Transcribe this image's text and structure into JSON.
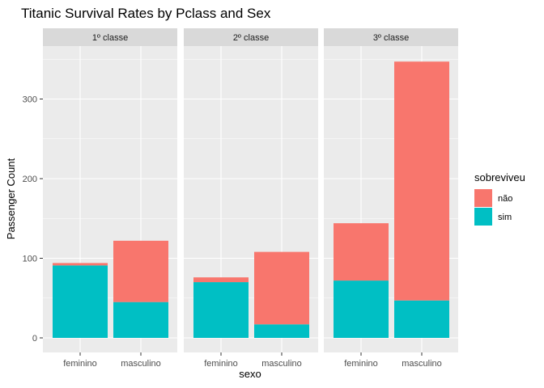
{
  "chart_data": {
    "type": "bar",
    "stacked": true,
    "title": "Titanic Survival Rates by Pclass and Sex",
    "xlabel": "sexo",
    "ylabel": "Passenger Count",
    "ylim": [
      0,
      360
    ],
    "yticks": [
      0,
      100,
      200,
      300
    ],
    "grid": true,
    "legend_position": "right",
    "legend_title": "sobreviveu",
    "categories": [
      "feminino",
      "masculino"
    ],
    "facets": [
      {
        "label": "1º classe",
        "series": [
          {
            "name": "não",
            "values": [
              3,
              77
            ]
          },
          {
            "name": "sim",
            "values": [
              91,
              45
            ]
          }
        ]
      },
      {
        "label": "2º classe",
        "series": [
          {
            "name": "não",
            "values": [
              6,
              91
            ]
          },
          {
            "name": "sim",
            "values": [
              70,
              17
            ]
          }
        ]
      },
      {
        "label": "3º classe",
        "series": [
          {
            "name": "não",
            "values": [
              72,
              300
            ]
          },
          {
            "name": "sim",
            "values": [
              72,
              47
            ]
          }
        ]
      }
    ],
    "colors": {
      "não": "#F8766D",
      "sim": "#00BFC4"
    }
  }
}
